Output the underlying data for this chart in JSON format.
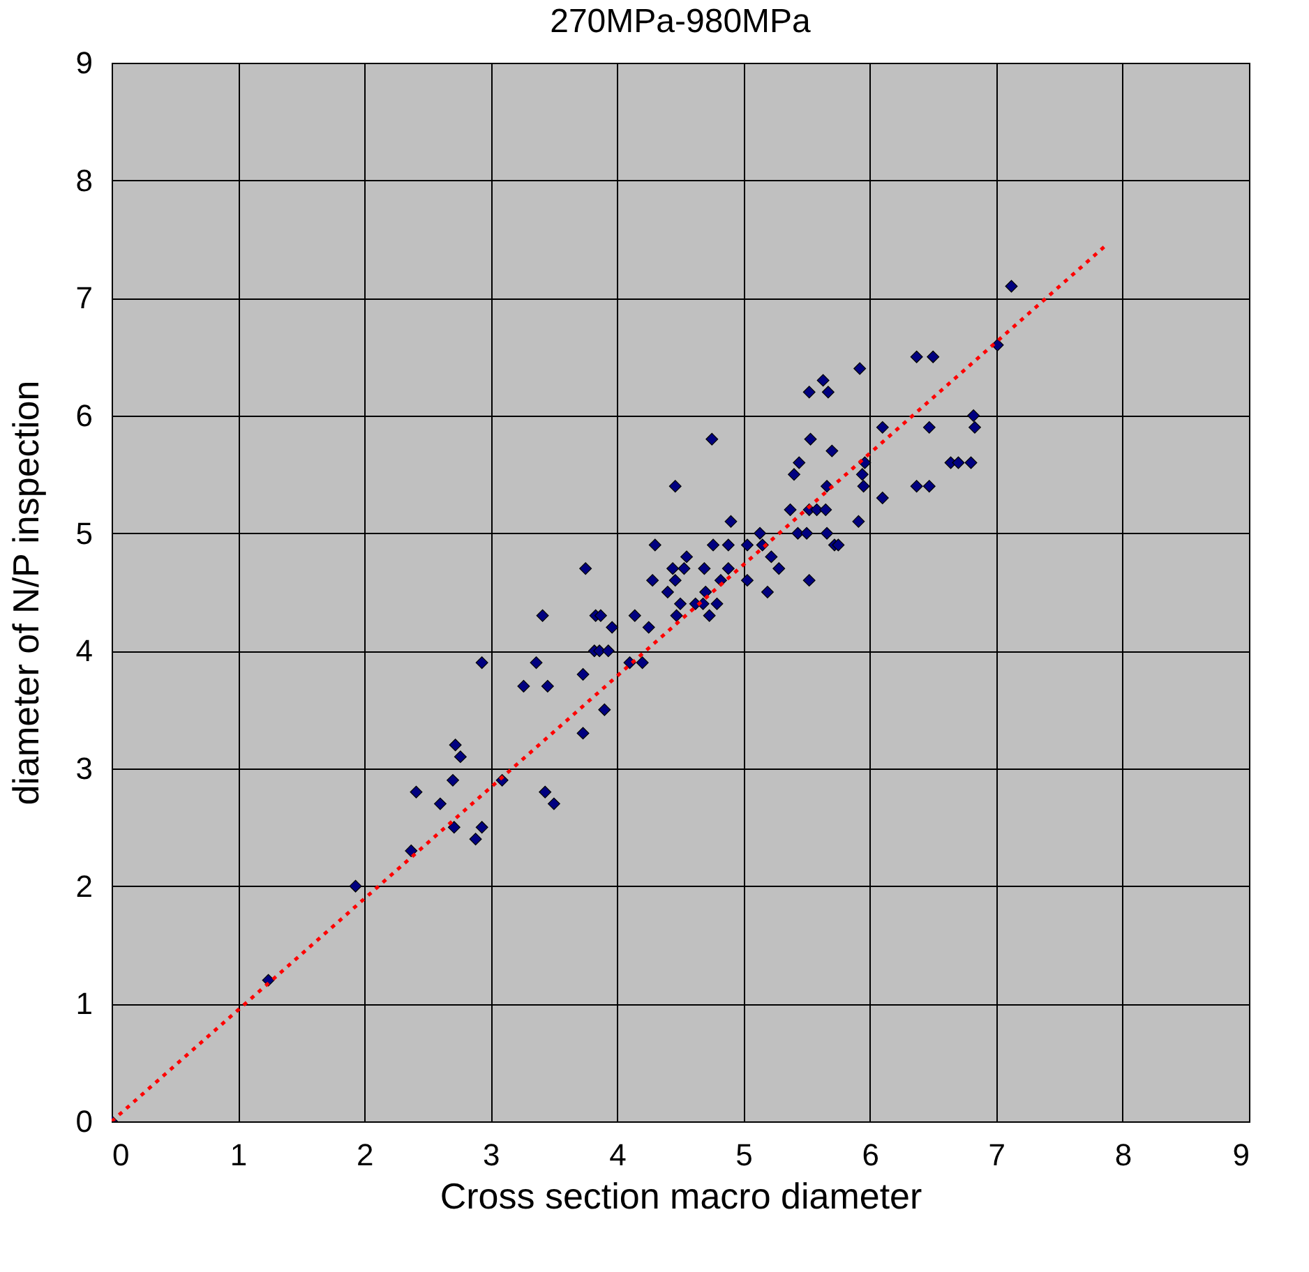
{
  "chart_data": {
    "type": "scatter",
    "title": "270MPa-980MPa",
    "xlabel": "Cross section  macro diameter",
    "ylabel": "diameter of N/P inspection",
    "xlim": [
      0,
      9
    ],
    "ylim": [
      0,
      9
    ],
    "xticks": [
      0,
      1,
      2,
      3,
      4,
      5,
      6,
      7,
      8,
      9
    ],
    "yticks": [
      0,
      1,
      2,
      3,
      4,
      5,
      6,
      7,
      8,
      9
    ],
    "grid": true,
    "marker": "diamond",
    "series": [
      {
        "color": "#000080",
        "x": [
          0,
          1.24,
          1.93,
          2.37,
          2.41,
          2.6,
          2.7,
          2.72,
          2.76,
          2.71,
          2.88,
          2.93,
          2.93,
          3.09,
          3.26,
          3.36,
          3.41,
          3.45,
          3.43,
          3.5,
          3.73,
          3.75,
          3.73,
          3.82,
          3.83,
          3.86,
          3.87,
          3.9,
          3.93,
          3.96,
          4.14,
          4.1,
          4.2,
          4.25,
          4.28,
          4.3,
          4.4,
          4.44,
          4.46,
          4.5,
          4.47,
          4.46,
          4.53,
          4.55,
          4.62,
          4.68,
          4.69,
          4.7,
          4.73,
          4.76,
          4.75,
          4.79,
          4.82,
          4.88,
          4.9,
          4.88,
          5.03,
          5.03,
          5.13,
          5.15,
          5.19,
          5.22,
          5.28,
          5.37,
          5.4,
          5.44,
          5.43,
          5.5,
          5.52,
          5.53,
          5.52,
          5.52,
          5.58,
          5.63,
          5.66,
          5.65,
          5.66,
          5.67,
          5.7,
          5.72,
          5.75,
          5.92,
          5.91,
          5.94,
          5.95,
          5.96,
          6.1,
          6.1,
          6.37,
          6.37,
          6.47,
          6.47,
          6.5,
          6.64,
          6.7,
          6.8,
          6.82,
          6.83,
          7.01,
          7.12
        ],
        "values": [
          0,
          1.2,
          2.0,
          2.3,
          2.8,
          2.7,
          2.9,
          3.2,
          3.1,
          2.5,
          2.4,
          2.5,
          3.9,
          2.9,
          3.7,
          3.9,
          4.3,
          3.7,
          2.8,
          2.7,
          3.3,
          4.7,
          3.8,
          4.0,
          4.3,
          4.0,
          4.3,
          3.5,
          4.0,
          4.2,
          4.3,
          3.9,
          3.9,
          4.2,
          4.6,
          4.9,
          4.5,
          4.7,
          4.6,
          4.4,
          4.3,
          5.4,
          4.7,
          4.8,
          4.4,
          4.4,
          4.7,
          4.5,
          4.3,
          4.9,
          5.8,
          4.4,
          4.6,
          4.9,
          5.1,
          4.7,
          4.9,
          4.6,
          5.0,
          4.9,
          4.5,
          4.8,
          4.7,
          5.2,
          5.5,
          5.6,
          5.0,
          5.0,
          6.2,
          5.8,
          5.2,
          4.6,
          5.2,
          6.3,
          5.0,
          5.2,
          5.4,
          6.2,
          5.7,
          4.9,
          4.9,
          6.4,
          5.1,
          5.5,
          5.4,
          5.6,
          5.9,
          5.3,
          6.5,
          5.4,
          5.4,
          5.9,
          6.5,
          5.6,
          5.6,
          5.6,
          6.0,
          5.9,
          6.6,
          7.1
        ]
      },
      {
        "type": "line",
        "color": "#ff0000",
        "line_style": "dotted",
        "marker": "none",
        "x": [
          0,
          7.86
        ],
        "values": [
          0,
          7.44
        ]
      }
    ]
  }
}
